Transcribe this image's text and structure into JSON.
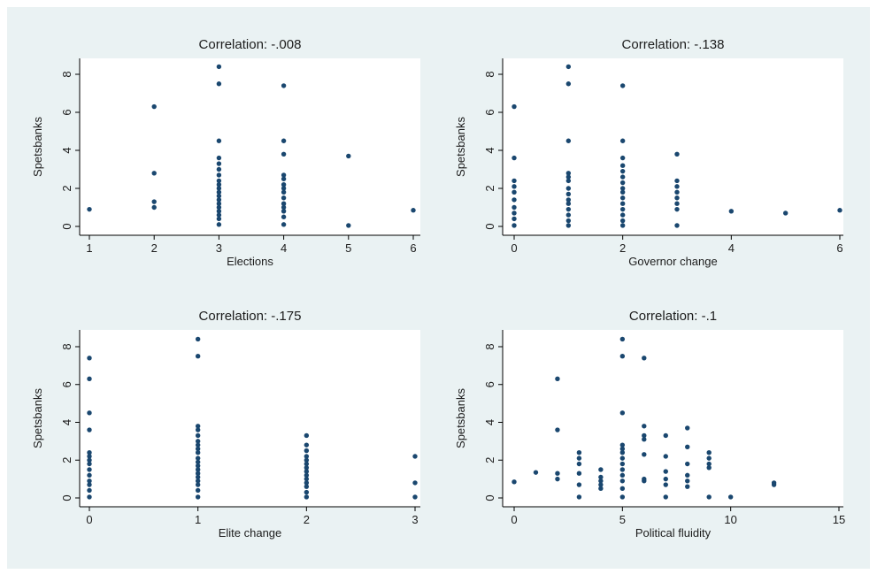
{
  "chart_data": [
    {
      "type": "scatter",
      "title": "Correlation: -.008",
      "xlabel": "Elections",
      "ylabel": "Spetsbanks",
      "xlim": [
        1,
        6
      ],
      "ylim": [
        0,
        8
      ],
      "xticks": [
        1,
        2,
        3,
        4,
        5,
        6
      ],
      "yticks": [
        0,
        2,
        4,
        6,
        8
      ],
      "grid": false,
      "marker_color": "#1a476f",
      "points": [
        {
          "x": 1,
          "y": 0.9
        },
        {
          "x": 2,
          "y": 6.3
        },
        {
          "x": 2,
          "y": 2.8
        },
        {
          "x": 2,
          "y": 1.3
        },
        {
          "x": 2,
          "y": 1.0
        },
        {
          "x": 3,
          "y": 8.4
        },
        {
          "x": 3,
          "y": 7.5
        },
        {
          "x": 3,
          "y": 4.5
        },
        {
          "x": 3,
          "y": 3.6
        },
        {
          "x": 3,
          "y": 3.3
        },
        {
          "x": 3,
          "y": 3.0
        },
        {
          "x": 3,
          "y": 2.7
        },
        {
          "x": 3,
          "y": 2.4
        },
        {
          "x": 3,
          "y": 2.2
        },
        {
          "x": 3,
          "y": 2.0
        },
        {
          "x": 3,
          "y": 1.8
        },
        {
          "x": 3,
          "y": 1.6
        },
        {
          "x": 3,
          "y": 1.4
        },
        {
          "x": 3,
          "y": 1.2
        },
        {
          "x": 3,
          "y": 1.0
        },
        {
          "x": 3,
          "y": 0.8
        },
        {
          "x": 3,
          "y": 0.6
        },
        {
          "x": 3,
          "y": 0.4
        },
        {
          "x": 3,
          "y": 0.1
        },
        {
          "x": 4,
          "y": 7.4
        },
        {
          "x": 4,
          "y": 4.5
        },
        {
          "x": 4,
          "y": 3.8
        },
        {
          "x": 4,
          "y": 2.7
        },
        {
          "x": 4,
          "y": 2.5
        },
        {
          "x": 4,
          "y": 2.2
        },
        {
          "x": 4,
          "y": 2.0
        },
        {
          "x": 4,
          "y": 1.8
        },
        {
          "x": 4,
          "y": 1.5
        },
        {
          "x": 4,
          "y": 1.2
        },
        {
          "x": 4,
          "y": 1.0
        },
        {
          "x": 4,
          "y": 0.8
        },
        {
          "x": 4,
          "y": 0.5
        },
        {
          "x": 4,
          "y": 0.1
        },
        {
          "x": 5,
          "y": 3.7
        },
        {
          "x": 5,
          "y": 0.05
        },
        {
          "x": 6,
          "y": 0.85
        }
      ]
    },
    {
      "type": "scatter",
      "title": "Correlation: -.138",
      "xlabel": "Governor change",
      "ylabel": "Spetsbanks",
      "xlim": [
        0,
        6
      ],
      "ylim": [
        0,
        8
      ],
      "xticks": [
        0,
        2,
        4,
        6
      ],
      "yticks": [
        0,
        2,
        4,
        6,
        8
      ],
      "grid": false,
      "marker_color": "#1a476f",
      "points": [
        {
          "x": 0,
          "y": 6.3
        },
        {
          "x": 0,
          "y": 3.6
        },
        {
          "x": 0,
          "y": 2.4
        },
        {
          "x": 0,
          "y": 2.1
        },
        {
          "x": 0,
          "y": 1.8
        },
        {
          "x": 0,
          "y": 1.4
        },
        {
          "x": 0,
          "y": 1.0
        },
        {
          "x": 0,
          "y": 0.7
        },
        {
          "x": 0,
          "y": 0.4
        },
        {
          "x": 0,
          "y": 0.05
        },
        {
          "x": 1,
          "y": 8.4
        },
        {
          "x": 1,
          "y": 7.5
        },
        {
          "x": 1,
          "y": 4.5
        },
        {
          "x": 1,
          "y": 2.8
        },
        {
          "x": 1,
          "y": 2.6
        },
        {
          "x": 1,
          "y": 2.4
        },
        {
          "x": 1,
          "y": 2.0
        },
        {
          "x": 1,
          "y": 1.7
        },
        {
          "x": 1,
          "y": 1.4
        },
        {
          "x": 1,
          "y": 1.2
        },
        {
          "x": 1,
          "y": 0.9
        },
        {
          "x": 1,
          "y": 0.6
        },
        {
          "x": 1,
          "y": 0.3
        },
        {
          "x": 1,
          "y": 0.05
        },
        {
          "x": 2,
          "y": 7.4
        },
        {
          "x": 2,
          "y": 4.5
        },
        {
          "x": 2,
          "y": 3.6
        },
        {
          "x": 2,
          "y": 3.2
        },
        {
          "x": 2,
          "y": 2.9
        },
        {
          "x": 2,
          "y": 2.6
        },
        {
          "x": 2,
          "y": 2.3
        },
        {
          "x": 2,
          "y": 2.0
        },
        {
          "x": 2,
          "y": 1.8
        },
        {
          "x": 2,
          "y": 1.5
        },
        {
          "x": 2,
          "y": 1.2
        },
        {
          "x": 2,
          "y": 0.9
        },
        {
          "x": 2,
          "y": 0.6
        },
        {
          "x": 2,
          "y": 0.3
        },
        {
          "x": 2,
          "y": 0.05
        },
        {
          "x": 3,
          "y": 3.8
        },
        {
          "x": 3,
          "y": 2.4
        },
        {
          "x": 3,
          "y": 2.1
        },
        {
          "x": 3,
          "y": 1.8
        },
        {
          "x": 3,
          "y": 1.5
        },
        {
          "x": 3,
          "y": 1.2
        },
        {
          "x": 3,
          "y": 0.9
        },
        {
          "x": 3,
          "y": 0.05
        },
        {
          "x": 4,
          "y": 0.8
        },
        {
          "x": 5,
          "y": 0.7
        },
        {
          "x": 6,
          "y": 0.85
        }
      ]
    },
    {
      "type": "scatter",
      "title": "Correlation: -.175",
      "xlabel": "Elite change",
      "ylabel": "Spetsbanks",
      "xlim": [
        0,
        3
      ],
      "ylim": [
        0,
        8
      ],
      "xticks": [
        0,
        1,
        2,
        3
      ],
      "yticks": [
        0,
        2,
        4,
        6,
        8
      ],
      "grid": false,
      "marker_color": "#1a476f",
      "points": [
        {
          "x": 0,
          "y": 7.4
        },
        {
          "x": 0,
          "y": 6.3
        },
        {
          "x": 0,
          "y": 4.5
        },
        {
          "x": 0,
          "y": 3.6
        },
        {
          "x": 0,
          "y": 2.4
        },
        {
          "x": 0,
          "y": 2.2
        },
        {
          "x": 0,
          "y": 2.0
        },
        {
          "x": 0,
          "y": 1.8
        },
        {
          "x": 0,
          "y": 1.5
        },
        {
          "x": 0,
          "y": 1.2
        },
        {
          "x": 0,
          "y": 0.9
        },
        {
          "x": 0,
          "y": 0.7
        },
        {
          "x": 0,
          "y": 0.4
        },
        {
          "x": 0,
          "y": 0.05
        },
        {
          "x": 1,
          "y": 8.4
        },
        {
          "x": 1,
          "y": 7.5
        },
        {
          "x": 1,
          "y": 3.8
        },
        {
          "x": 1,
          "y": 3.6
        },
        {
          "x": 1,
          "y": 3.3
        },
        {
          "x": 1,
          "y": 3.0
        },
        {
          "x": 1,
          "y": 2.8
        },
        {
          "x": 1,
          "y": 2.6
        },
        {
          "x": 1,
          "y": 2.4
        },
        {
          "x": 1,
          "y": 2.1
        },
        {
          "x": 1,
          "y": 1.9
        },
        {
          "x": 1,
          "y": 1.7
        },
        {
          "x": 1,
          "y": 1.5
        },
        {
          "x": 1,
          "y": 1.3
        },
        {
          "x": 1,
          "y": 1.1
        },
        {
          "x": 1,
          "y": 0.9
        },
        {
          "x": 1,
          "y": 0.7
        },
        {
          "x": 1,
          "y": 0.4
        },
        {
          "x": 1,
          "y": 0.05
        },
        {
          "x": 2,
          "y": 3.3
        },
        {
          "x": 2,
          "y": 2.8
        },
        {
          "x": 2,
          "y": 2.5
        },
        {
          "x": 2,
          "y": 2.2
        },
        {
          "x": 2,
          "y": 2.0
        },
        {
          "x": 2,
          "y": 1.8
        },
        {
          "x": 2,
          "y": 1.6
        },
        {
          "x": 2,
          "y": 1.4
        },
        {
          "x": 2,
          "y": 1.2
        },
        {
          "x": 2,
          "y": 1.0
        },
        {
          "x": 2,
          "y": 0.8
        },
        {
          "x": 2,
          "y": 0.6
        },
        {
          "x": 2,
          "y": 0.3
        },
        {
          "x": 2,
          "y": 0.05
        },
        {
          "x": 3,
          "y": 2.2
        },
        {
          "x": 3,
          "y": 0.8
        },
        {
          "x": 3,
          "y": 0.05
        }
      ]
    },
    {
      "type": "scatter",
      "title": "Correlation:   -.1",
      "xlabel": "Political fluidity",
      "ylabel": "Spetsbanks",
      "xlim": [
        0,
        15
      ],
      "ylim": [
        0,
        8
      ],
      "xticks": [
        0,
        5,
        10,
        15
      ],
      "yticks": [
        0,
        2,
        4,
        6,
        8
      ],
      "grid": false,
      "marker_color": "#1a476f",
      "points": [
        {
          "x": 0,
          "y": 0.85
        },
        {
          "x": 1,
          "y": 1.35
        },
        {
          "x": 2,
          "y": 6.3
        },
        {
          "x": 2,
          "y": 3.6
        },
        {
          "x": 2,
          "y": 1.3
        },
        {
          "x": 2,
          "y": 1.0
        },
        {
          "x": 3,
          "y": 2.4
        },
        {
          "x": 3,
          "y": 2.1
        },
        {
          "x": 3,
          "y": 1.8
        },
        {
          "x": 3,
          "y": 1.3
        },
        {
          "x": 3,
          "y": 0.7
        },
        {
          "x": 3,
          "y": 0.05
        },
        {
          "x": 4,
          "y": 1.5
        },
        {
          "x": 4,
          "y": 1.1
        },
        {
          "x": 4,
          "y": 0.9
        },
        {
          "x": 4,
          "y": 0.7
        },
        {
          "x": 4,
          "y": 0.5
        },
        {
          "x": 5,
          "y": 8.4
        },
        {
          "x": 5,
          "y": 7.5
        },
        {
          "x": 5,
          "y": 4.5
        },
        {
          "x": 5,
          "y": 2.8
        },
        {
          "x": 5,
          "y": 2.6
        },
        {
          "x": 5,
          "y": 2.4
        },
        {
          "x": 5,
          "y": 2.1
        },
        {
          "x": 5,
          "y": 1.8
        },
        {
          "x": 5,
          "y": 1.5
        },
        {
          "x": 5,
          "y": 1.2
        },
        {
          "x": 5,
          "y": 0.9
        },
        {
          "x": 5,
          "y": 0.5
        },
        {
          "x": 5,
          "y": 0.05
        },
        {
          "x": 6,
          "y": 7.4
        },
        {
          "x": 6,
          "y": 3.8
        },
        {
          "x": 6,
          "y": 3.3
        },
        {
          "x": 6,
          "y": 3.1
        },
        {
          "x": 6,
          "y": 2.3
        },
        {
          "x": 6,
          "y": 1.0
        },
        {
          "x": 6,
          "y": 0.9
        },
        {
          "x": 7,
          "y": 3.3
        },
        {
          "x": 7,
          "y": 2.2
        },
        {
          "x": 7,
          "y": 1.4
        },
        {
          "x": 7,
          "y": 1.0
        },
        {
          "x": 7,
          "y": 0.7
        },
        {
          "x": 7,
          "y": 0.05
        },
        {
          "x": 8,
          "y": 3.7
        },
        {
          "x": 8,
          "y": 2.7
        },
        {
          "x": 8,
          "y": 1.8
        },
        {
          "x": 8,
          "y": 1.2
        },
        {
          "x": 8,
          "y": 0.9
        },
        {
          "x": 8,
          "y": 0.6
        },
        {
          "x": 9,
          "y": 2.4
        },
        {
          "x": 9,
          "y": 2.1
        },
        {
          "x": 9,
          "y": 1.8
        },
        {
          "x": 9,
          "y": 1.6
        },
        {
          "x": 9,
          "y": 0.05
        },
        {
          "x": 10,
          "y": 0.05
        },
        {
          "x": 12,
          "y": 0.8
        },
        {
          "x": 12,
          "y": 0.7
        }
      ]
    }
  ]
}
